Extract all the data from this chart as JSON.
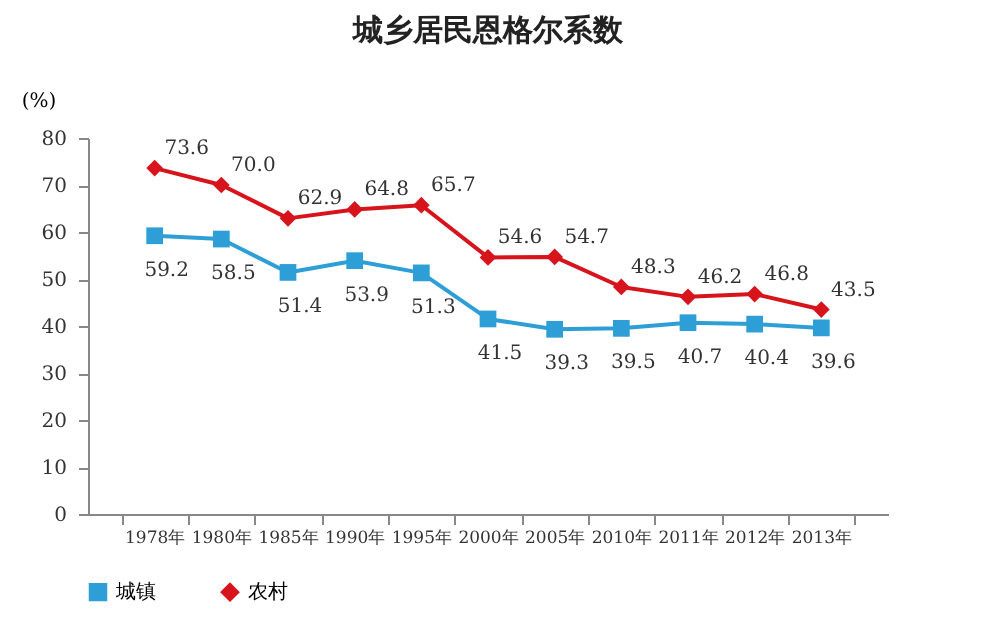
{
  "chart_data": {
    "type": "line",
    "title": "城乡居民恩格尔系数",
    "ylabel": "(%)",
    "categories": [
      "1978年",
      "1980年",
      "1985年",
      "1990年",
      "1995年",
      "2000年",
      "2005年",
      "2010年",
      "2011年",
      "2012年",
      "2013年"
    ],
    "series": [
      {
        "name": "城镇",
        "color": "#2e9fd6",
        "marker": "square",
        "values": [
          59.2,
          58.5,
          51.4,
          53.9,
          51.3,
          41.5,
          39.3,
          39.5,
          40.7,
          40.4,
          39.6
        ],
        "value_labels": [
          "59.2",
          "58.5",
          "51.4",
          "53.9",
          "51.3",
          "41.5",
          "39.3",
          "39.5",
          "40.7",
          "40.4",
          "39.6"
        ]
      },
      {
        "name": "农村",
        "color": "#d7141c",
        "marker": "diamond",
        "values": [
          73.6,
          70.0,
          62.9,
          64.8,
          65.7,
          54.6,
          54.7,
          48.3,
          46.2,
          46.8,
          43.5
        ],
        "value_labels": [
          "73.6",
          "70.0",
          "62.9",
          "64.8",
          "65.7",
          "54.6",
          "54.7",
          "48.3",
          "46.2",
          "46.8",
          "43.5"
        ]
      }
    ],
    "ylim": [
      0,
      80
    ],
    "yticks": [
      0,
      10,
      20,
      30,
      40,
      50,
      60,
      70,
      80
    ],
    "grid": false,
    "legend": "bottom",
    "line_style": "solid"
  }
}
